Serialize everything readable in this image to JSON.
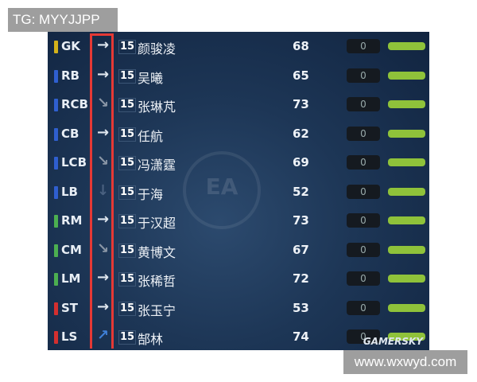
{
  "watermark_top": "TG: MYYJJPP",
  "watermark_bottom": "www.wxwyd.com",
  "logo_ea": "EA",
  "logo_gamersky": "GAMERSKY",
  "players": [
    {
      "pos": "GK",
      "color": "#d4b21a",
      "arrow": "→",
      "arrow_color": "#dfe6ee",
      "num": "15",
      "name": "颜骏凌",
      "rating": "68",
      "value": "0"
    },
    {
      "pos": "RB",
      "color": "#2f5fd0",
      "arrow": "→",
      "arrow_color": "#dfe6ee",
      "num": "15",
      "name": "吴曦",
      "rating": "65",
      "value": "0"
    },
    {
      "pos": "RCB",
      "color": "#2f5fd0",
      "arrow": "↘",
      "arrow_color": "#8a96a6",
      "num": "15",
      "name": "张琳芃",
      "rating": "73",
      "value": "0"
    },
    {
      "pos": "CB",
      "color": "#2f5fd0",
      "arrow": "→",
      "arrow_color": "#dfe6ee",
      "num": "15",
      "name": "任航",
      "rating": "62",
      "value": "0"
    },
    {
      "pos": "LCB",
      "color": "#2f5fd0",
      "arrow": "↘",
      "arrow_color": "#8a96a6",
      "num": "15",
      "name": "冯潇霆",
      "rating": "69",
      "value": "0"
    },
    {
      "pos": "LB",
      "color": "#2f5fd0",
      "arrow": "↓",
      "arrow_color": "#4a6180",
      "num": "15",
      "name": "于海",
      "rating": "52",
      "value": "0"
    },
    {
      "pos": "RM",
      "color": "#4caf50",
      "arrow": "→",
      "arrow_color": "#dfe6ee",
      "num": "15",
      "name": "于汉超",
      "rating": "73",
      "value": "0"
    },
    {
      "pos": "CM",
      "color": "#4caf50",
      "arrow": "↘",
      "arrow_color": "#8a96a6",
      "num": "15",
      "name": "黄博文",
      "rating": "67",
      "value": "0"
    },
    {
      "pos": "LM",
      "color": "#4caf50",
      "arrow": "→",
      "arrow_color": "#dfe6ee",
      "num": "15",
      "name": "张稀哲",
      "rating": "72",
      "value": "0"
    },
    {
      "pos": "ST",
      "color": "#d32f2f",
      "arrow": "→",
      "arrow_color": "#dfe6ee",
      "num": "15",
      "name": "张玉宁",
      "rating": "53",
      "value": "0"
    },
    {
      "pos": "LS",
      "color": "#d32f2f",
      "arrow": "↗",
      "arrow_color": "#3f7fd6",
      "num": "15",
      "name": "郜林",
      "rating": "74",
      "value": "0"
    }
  ]
}
